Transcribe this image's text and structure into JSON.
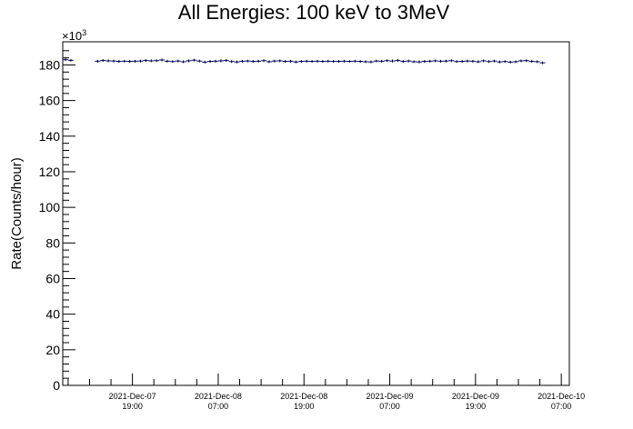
{
  "chart_data": {
    "type": "line",
    "title": "All Energies:  100 keV to 3MeV",
    "xlabel": "",
    "ylabel": "Rate(Counts/hour)",
    "y_multiplier": "×10",
    "y_multiplier_exp": "3",
    "ylim": [
      0,
      193
    ],
    "xlim_hours": [
      0,
      94.5
    ],
    "y_ticks": [
      0,
      20,
      40,
      60,
      80,
      100,
      120,
      140,
      160,
      180
    ],
    "x_ticks": [
      {
        "date": "2021-Dec-07",
        "time": "19:00",
        "hour": 13
      },
      {
        "date": "2021-Dec-08",
        "time": "07:00",
        "hour": 29
      },
      {
        "date": "2021-Dec-08",
        "time": "19:00",
        "hour": 45
      },
      {
        "date": "2021-Dec-09",
        "time": "07:00",
        "hour": 61
      },
      {
        "date": "2021-Dec-09",
        "time": "19:00",
        "hour": 77
      },
      {
        "date": "2021-Dec-10",
        "time": "07:00",
        "hour": 93
      }
    ],
    "series": [
      {
        "name": "",
        "color": "#000080",
        "segments": [
          {
            "x_start": 0,
            "values": [
              183.0,
              182.6
            ]
          },
          {
            "x_start": 6,
            "values": [
              182.1,
              182.5,
              182.3,
              182.2,
              182.0,
              182.1,
              182.0,
              182.1,
              182.2,
              182.5,
              182.3,
              182.4,
              182.8,
              182.1,
              181.9,
              182.2,
              181.8,
              182.3,
              182.7,
              182.2,
              181.6,
              182.0,
              182.1,
              182.3,
              182.5,
              181.9,
              181.7,
              182.1,
              182.2,
              182.0,
              182.1,
              182.4,
              181.8,
              182.2,
              182.3,
              182.0,
              182.1,
              181.7,
              182.0,
              182.1,
              182.0,
              182.1,
              182.0,
              182.1,
              182.0,
              182.0,
              182.1,
              182.0,
              182.1,
              182.0,
              181.8,
              181.7,
              182.2,
              182.1,
              182.4,
              182.2,
              182.5,
              182.0,
              182.2,
              181.8,
              181.7,
              182.0,
              182.1,
              182.3,
              182.1,
              182.2,
              182.4,
              181.9,
              182.0,
              182.2,
              182.1,
              181.8,
              182.3,
              181.9,
              182.2,
              181.7,
              181.9,
              181.6,
              181.8,
              182.3,
              182.4,
              182.0,
              181.8,
              181.2
            ]
          }
        ]
      }
    ],
    "grid": false,
    "legend": "none"
  }
}
